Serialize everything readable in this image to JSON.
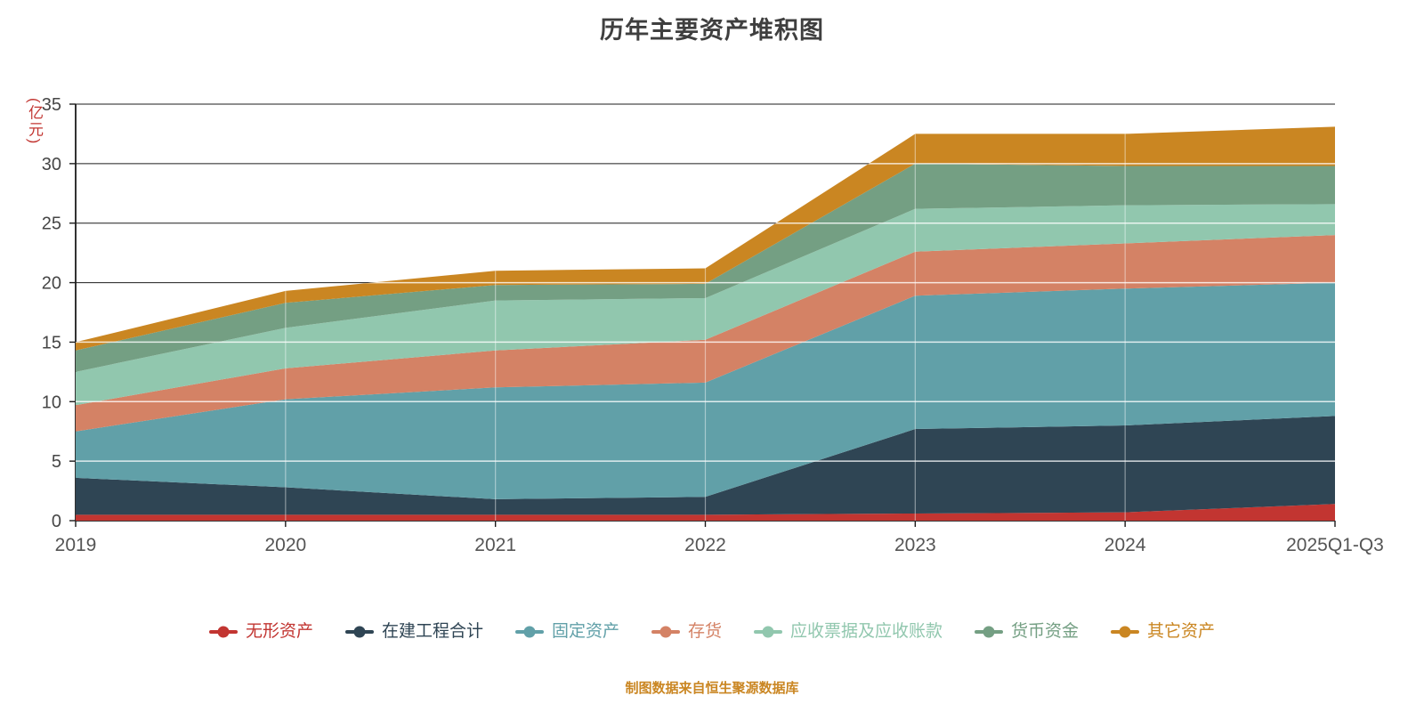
{
  "title": "历年主要资产堆积图",
  "y_unit_label": "(亿元)",
  "footer": "制图数据来自恒生聚源数据库",
  "chart_data": {
    "type": "area",
    "stacked": true,
    "title": "历年主要资产堆积图",
    "ylabel": "(亿元)",
    "xlabel": "",
    "categories": [
      "2019",
      "2020",
      "2021",
      "2022",
      "2023",
      "2024",
      "2025Q1-Q3"
    ],
    "series": [
      {
        "name": "无形资产",
        "color": "#c23531",
        "values": [
          0.5,
          0.5,
          0.5,
          0.5,
          0.6,
          0.7,
          1.4
        ]
      },
      {
        "name": "在建工程合计",
        "color": "#2f4554",
        "values": [
          3.1,
          2.3,
          1.3,
          1.5,
          7.1,
          7.3,
          7.4
        ]
      },
      {
        "name": "固定资产",
        "color": "#61a0a8",
        "values": [
          3.9,
          7.4,
          9.4,
          9.6,
          11.2,
          11.5,
          11.2
        ]
      },
      {
        "name": "存货",
        "color": "#d48265",
        "values": [
          2.2,
          2.6,
          3.1,
          3.6,
          3.7,
          3.8,
          4.0
        ]
      },
      {
        "name": "应收票据及应收账款",
        "color": "#91c7ae",
        "values": [
          2.8,
          3.4,
          4.2,
          3.5,
          3.6,
          3.2,
          2.6
        ]
      },
      {
        "name": "货币资金",
        "color": "#749f83",
        "values": [
          1.8,
          2.1,
          1.3,
          1.2,
          3.8,
          3.3,
          3.2
        ]
      },
      {
        "name": "其它资产",
        "color": "#ca8622",
        "values": [
          0.7,
          1.0,
          1.2,
          1.3,
          2.5,
          2.7,
          3.3
        ]
      }
    ],
    "ylim": [
      0,
      35
    ],
    "ytick_step": 5,
    "grid": true,
    "legend_position": "bottom"
  }
}
